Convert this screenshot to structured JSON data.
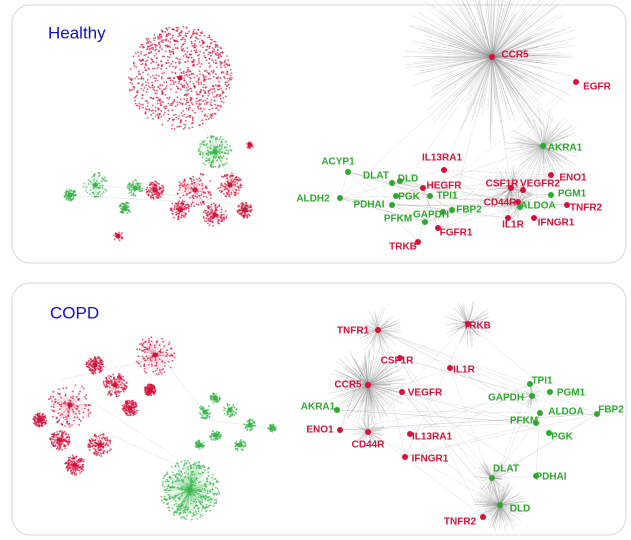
{
  "panels": [
    {
      "title": "Healthy",
      "nodes": [
        {
          "label": "CCR5",
          "color": "#d4133c"
        },
        {
          "label": "EGFR",
          "color": "#d4133c"
        },
        {
          "label": "AKRA1",
          "color": "#2ea82e"
        },
        {
          "label": "IL13RA1",
          "color": "#d4133c"
        },
        {
          "label": "ENO1",
          "color": "#d4133c"
        },
        {
          "label": "ACYP1",
          "color": "#2ea82e"
        },
        {
          "label": "DLAT",
          "color": "#2ea82e"
        },
        {
          "label": "DLD",
          "color": "#2ea82e"
        },
        {
          "label": "HEGFR",
          "color": "#d4133c"
        },
        {
          "label": "CSF1R",
          "color": "#d4133c"
        },
        {
          "label": "VEGFR2",
          "color": "#d4133c"
        },
        {
          "label": "PGM1",
          "color": "#2ea82e"
        },
        {
          "label": "ALDH2",
          "color": "#2ea82e"
        },
        {
          "label": "PGK",
          "color": "#2ea82e"
        },
        {
          "label": "TPI1",
          "color": "#2ea82e"
        },
        {
          "label": "PDHAI",
          "color": "#2ea82e"
        },
        {
          "label": "FBP2",
          "color": "#2ea82e"
        },
        {
          "label": "CD44R",
          "color": "#d4133c"
        },
        {
          "label": "ALDOA",
          "color": "#2ea82e"
        },
        {
          "label": "TNFR2",
          "color": "#d4133c"
        },
        {
          "label": "GAPDH",
          "color": "#2ea82e"
        },
        {
          "label": "PFKM",
          "color": "#2ea82e"
        },
        {
          "label": "IL1R",
          "color": "#d4133c"
        },
        {
          "label": "IFNGR1",
          "color": "#d4133c"
        },
        {
          "label": "FGFR1",
          "color": "#d4133c"
        },
        {
          "label": "TRKB",
          "color": "#d4133c"
        }
      ]
    },
    {
      "title": "COPD",
      "nodes": [
        {
          "label": "TNFR1",
          "color": "#d4133c"
        },
        {
          "label": "TRKB",
          "color": "#d4133c"
        },
        {
          "label": "CSF1R",
          "color": "#d4133c"
        },
        {
          "label": "IL1R",
          "color": "#d4133c"
        },
        {
          "label": "CCR5",
          "color": "#d4133c"
        },
        {
          "label": "VEGFR",
          "color": "#d4133c"
        },
        {
          "label": "TPI1",
          "color": "#2ea82e"
        },
        {
          "label": "PGM1",
          "color": "#2ea82e"
        },
        {
          "label": "GAPDH",
          "color": "#2ea82e"
        },
        {
          "label": "AKRA1",
          "color": "#2ea82e"
        },
        {
          "label": "ALDOA",
          "color": "#2ea82e"
        },
        {
          "label": "FBP2",
          "color": "#2ea82e"
        },
        {
          "label": "PFKM",
          "color": "#2ea82e"
        },
        {
          "label": "ENO1",
          "color": "#d4133c"
        },
        {
          "label": "IL13RA1",
          "color": "#d4133c"
        },
        {
          "label": "CD44R",
          "color": "#d4133c"
        },
        {
          "label": "PGK",
          "color": "#2ea82e"
        },
        {
          "label": "IFNGR1",
          "color": "#d4133c"
        },
        {
          "label": "DLAT",
          "color": "#2ea82e"
        },
        {
          "label": "PDHAI",
          "color": "#2ea82e"
        },
        {
          "label": "DLD",
          "color": "#2ea82e"
        },
        {
          "label": "TNFR2",
          "color": "#d4133c"
        }
      ]
    }
  ]
}
